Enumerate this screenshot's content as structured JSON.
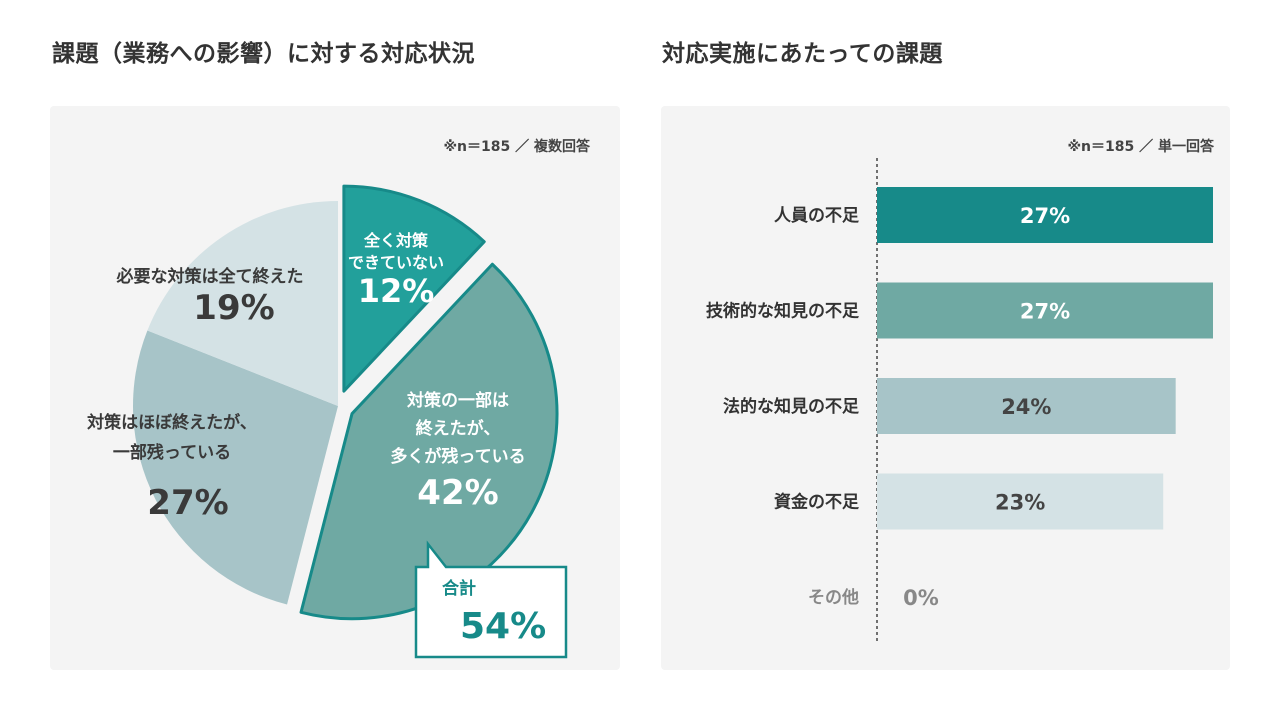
{
  "headings": {
    "left": "課題（業務への影響）に対する対応状況",
    "right": "対応実施にあたっての課題"
  },
  "notes": {
    "left": "※n＝185 ／ 複数回答",
    "right": "※n＝185 ／ 単一回答"
  },
  "colors": {
    "teal_dark": "#178a89",
    "teal_mid": "#6fa9a3",
    "blue_grey": "#a7c4c8",
    "light_grey": "#d4e2e5",
    "panel_bg": "#f4f4f4",
    "text": "#333333"
  },
  "callout": {
    "label": "合計",
    "value": "54%"
  },
  "chart_data": [
    {
      "type": "pie",
      "slices": [
        {
          "label_lines": [
            "全く対策",
            "できていない"
          ],
          "value": 12,
          "value_text": "12%",
          "color": "#22a09b"
        },
        {
          "label_lines": [
            "対策の一部は",
            "終えたが、",
            "多くが残っている"
          ],
          "value": 42,
          "value_text": "42%",
          "color": "#6fa9a3"
        },
        {
          "label_lines": [
            "対策はほぼ終えたが、",
            "一部残っている"
          ],
          "value": 27,
          "value_text": "27%",
          "color": "#a7c4c8"
        },
        {
          "label_lines": [
            "必要な対策は全て終えた"
          ],
          "value": 19,
          "value_text": "19%",
          "color": "#d4e2e5"
        }
      ]
    },
    {
      "type": "bar",
      "orientation": "horizontal",
      "categories": [
        "人員の不足",
        "技術的な知見の不足",
        "法的な知見の不足",
        "資金の不足",
        "その他"
      ],
      "values": [
        27,
        27,
        24,
        23,
        0
      ],
      "value_texts": [
        "27%",
        "27%",
        "24%",
        "23%",
        "0%"
      ],
      "colors": [
        "#178a89",
        "#6fa9a3",
        "#a7c4c8",
        "#d4e2e5",
        "#d4e2e5"
      ],
      "xlim": [
        0,
        27
      ]
    }
  ]
}
